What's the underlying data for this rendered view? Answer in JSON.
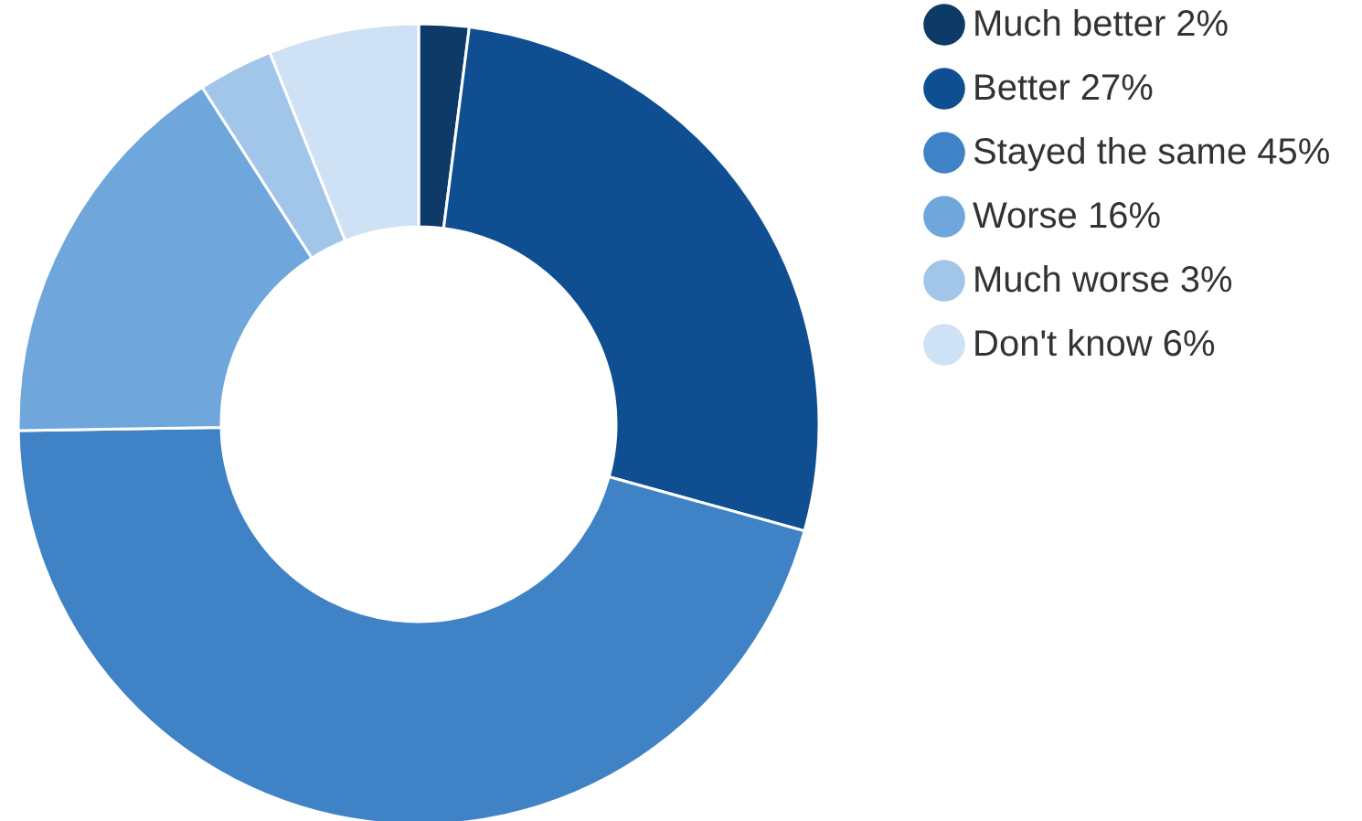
{
  "chart_data": {
    "type": "donut",
    "categories": [
      "Much better 2%",
      "Better 27%",
      "Stayed the same 45%",
      "Worse 16%",
      "Much worse 3%",
      "Don't know 6%"
    ],
    "values": [
      2,
      27,
      45,
      16,
      3,
      6
    ],
    "colors": [
      "#0d3a66",
      "#0f4f91",
      "#3f83c6",
      "#6fa7dc",
      "#a2c5ea",
      "#cfe1f4"
    ],
    "legend": "right"
  }
}
